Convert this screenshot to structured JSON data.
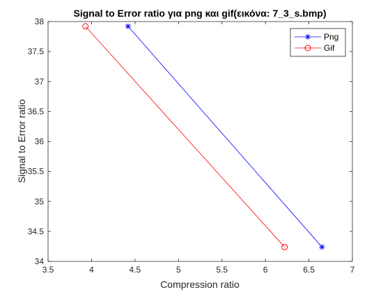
{
  "chart_data": {
    "type": "line",
    "title": "Signal to Error ratio για png και gif(εικόνα: 7_3_s.bmp)",
    "xlabel": "Compression ratio",
    "ylabel": "Signal to Error ratio",
    "xlim": [
      3.5,
      7
    ],
    "ylim": [
      34,
      38
    ],
    "xticks": [
      3.5,
      4,
      4.5,
      5,
      5.5,
      6,
      6.5,
      7
    ],
    "xtick_labels": [
      "3.5",
      "4",
      "4.5",
      "5",
      "5.5",
      "6",
      "6.5",
      "7"
    ],
    "yticks": [
      34,
      34.5,
      35,
      35.5,
      36,
      36.5,
      37,
      37.5,
      38
    ],
    "ytick_labels": [
      "34",
      "34.5",
      "35",
      "35.5",
      "36",
      "36.5",
      "37",
      "37.5",
      "38"
    ],
    "grid": false,
    "legend_position": "top-right",
    "series": [
      {
        "name": "Png",
        "color": "#0000ff",
        "marker": "asterisk",
        "x": [
          4.42,
          6.65
        ],
        "y": [
          37.92,
          34.24
        ]
      },
      {
        "name": "Gif",
        "color": "#ff0000",
        "marker": "circle",
        "x": [
          3.93,
          6.22
        ],
        "y": [
          37.92,
          34.24
        ]
      }
    ]
  }
}
